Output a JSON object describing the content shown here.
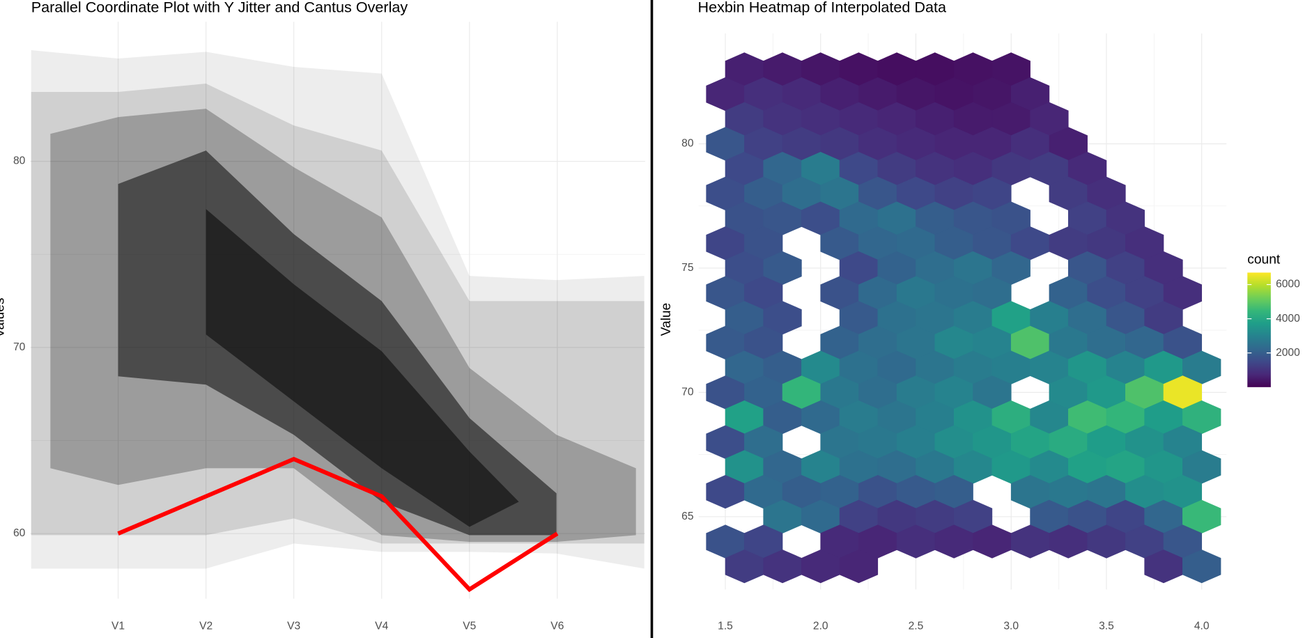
{
  "chart_data": [
    {
      "type": "line",
      "title": "Parallel Coordinate Plot with Y Jitter and Cantus Overlay",
      "y_label": "Values",
      "categories": [
        "V1",
        "V2",
        "V3",
        "V4",
        "V5",
        "V6"
      ],
      "values": [
        60,
        62,
        64,
        62,
        57,
        60
      ],
      "color": "#ff0000",
      "ylim": [
        56.5,
        87.5
      ],
      "yticks": [
        60,
        70,
        80
      ],
      "grid": true
    },
    {
      "type": "hexbin",
      "title": "Hexbin Heatmap of Interpolated Data",
      "y_label": "Value",
      "xlim": [
        1.36,
        4.13
      ],
      "ylim": [
        62.07,
        84.44
      ],
      "xticks": [
        1.5,
        {
          "value": 2,
          "label": "2.0"
        },
        2.5,
        {
          "value": 3,
          "label": "3.0"
        },
        3.5,
        {
          "value": 4,
          "label": "4.0"
        }
      ],
      "yticks": [
        65,
        70,
        75,
        80
      ],
      "grid": true,
      "legend_title": "count",
      "legend_ticks": [
        2000,
        4000,
        6000
      ],
      "legend_lim": [
        0,
        6700
      ],
      "colorscale": [
        "#440154",
        "#482878",
        "#3e4989",
        "#31688e",
        "#26828e",
        "#1f9e89",
        "#35b779",
        "#6ece58",
        "#b5de2b",
        "#fde725"
      ],
      "rows": [
        {
          "y": 83,
          "x": [
            1.6,
            1.8,
            2.0,
            2.2,
            2.4,
            2.6,
            2.8,
            3.0
          ],
          "values": [
            600,
            500,
            400,
            300,
            250,
            250,
            300,
            350
          ]
        },
        {
          "y": 82,
          "x": [
            1.5,
            1.7,
            1.9,
            2.1,
            2.3,
            2.5,
            2.7,
            2.9,
            3.1
          ],
          "values": [
            700,
            900,
            800,
            600,
            500,
            400,
            350,
            400,
            600
          ]
        },
        {
          "y": 81,
          "x": [
            1.6,
            1.8,
            2.0,
            2.2,
            2.4,
            2.6,
            2.8,
            3.0,
            3.2
          ],
          "values": [
            1200,
            1000,
            900,
            800,
            700,
            600,
            500,
            500,
            700
          ]
        },
        {
          "y": 80,
          "x": [
            1.5,
            1.7,
            1.9,
            2.1,
            2.3,
            2.5,
            2.7,
            2.9,
            3.1,
            3.3
          ],
          "values": [
            1800,
            1300,
            1200,
            1100,
            900,
            800,
            700,
            700,
            900,
            600
          ]
        },
        {
          "y": 79,
          "x": [
            1.6,
            1.8,
            2.0,
            2.2,
            2.4,
            2.6,
            2.8,
            3.0,
            3.2,
            3.4
          ],
          "values": [
            1500,
            2200,
            2800,
            1500,
            1200,
            1000,
            900,
            1100,
            1200,
            800
          ]
        },
        {
          "y": 78,
          "x": [
            1.5,
            1.7,
            1.9,
            2.1,
            2.3,
            2.5,
            2.7,
            2.9,
            3.1,
            3.3,
            3.5
          ],
          "values": [
            1600,
            2000,
            2400,
            2600,
            1800,
            1500,
            1300,
            1400,
            null,
            1200,
            900
          ]
        },
        {
          "y": 77,
          "x": [
            1.6,
            1.8,
            2.0,
            2.2,
            2.4,
            2.6,
            2.8,
            3.0,
            3.2,
            3.4,
            3.6
          ],
          "values": [
            1700,
            1800,
            1600,
            2300,
            2500,
            2000,
            1800,
            1700,
            null,
            1300,
            1000
          ]
        },
        {
          "y": 76,
          "x": [
            1.5,
            1.7,
            1.9,
            2.1,
            2.3,
            2.5,
            2.7,
            2.9,
            3.1,
            3.3,
            3.5,
            3.7
          ],
          "values": [
            1400,
            1700,
            null,
            1900,
            2200,
            2300,
            2000,
            1800,
            1500,
            1200,
            1100,
            900
          ]
        },
        {
          "y": 75,
          "x": [
            1.6,
            1.8,
            2.0,
            2.2,
            2.4,
            2.6,
            2.8,
            3.0,
            3.2,
            3.4,
            3.6,
            3.8
          ],
          "values": [
            1600,
            1900,
            null,
            1500,
            2100,
            2400,
            2600,
            2200,
            null,
            1800,
            1300,
            900
          ]
        },
        {
          "y": 74,
          "x": [
            1.5,
            1.7,
            1.9,
            2.1,
            2.3,
            2.5,
            2.7,
            2.9,
            3.1,
            3.3,
            3.5,
            3.7,
            3.9
          ],
          "values": [
            1800,
            1500,
            null,
            1700,
            2300,
            2700,
            2500,
            2400,
            null,
            2100,
            1600,
            1300,
            900
          ]
        },
        {
          "y": 73,
          "x": [
            1.6,
            1.8,
            2.0,
            2.2,
            2.4,
            2.6,
            2.8,
            3.0,
            3.2,
            3.4,
            3.6,
            3.8
          ],
          "values": [
            2000,
            1600,
            null,
            1900,
            2500,
            2600,
            2800,
            3800,
            2900,
            2400,
            1800,
            1200
          ]
        },
        {
          "y": 72,
          "x": [
            1.5,
            1.7,
            1.9,
            2.1,
            2.3,
            2.5,
            2.7,
            2.9,
            3.1,
            3.3,
            3.5,
            3.7,
            3.9
          ],
          "values": [
            1900,
            1700,
            null,
            2100,
            2400,
            2600,
            3100,
            3000,
            4800,
            2700,
            2400,
            2200,
            1700
          ]
        },
        {
          "y": 71,
          "x": [
            1.6,
            1.8,
            2.0,
            2.2,
            2.4,
            2.6,
            2.8,
            3.0,
            3.2,
            3.4,
            3.6,
            3.8,
            4.0
          ],
          "values": [
            2200,
            2000,
            3200,
            2500,
            2300,
            2600,
            2800,
            2900,
            3000,
            3500,
            3000,
            3600,
            2800
          ]
        },
        {
          "y": 70,
          "x": [
            1.5,
            1.7,
            1.9,
            2.1,
            2.3,
            2.5,
            2.7,
            2.9,
            3.1,
            3.3,
            3.5,
            3.7,
            3.9
          ],
          "values": [
            1700,
            2100,
            4400,
            2700,
            2400,
            2800,
            3000,
            2600,
            null,
            3200,
            3600,
            4800,
            6500
          ]
        },
        {
          "y": 69,
          "x": [
            1.6,
            1.8,
            2.0,
            2.2,
            2.4,
            2.6,
            2.8,
            3.0,
            3.2,
            3.4,
            3.6,
            3.8,
            4.0
          ],
          "values": [
            3800,
            2000,
            2300,
            2800,
            2600,
            2900,
            3400,
            4200,
            3100,
            4600,
            4400,
            3700,
            4300
          ]
        },
        {
          "y": 68,
          "x": [
            1.5,
            1.7,
            1.9,
            2.1,
            2.3,
            2.5,
            2.7,
            2.9,
            3.1,
            3.3,
            3.5,
            3.7,
            3.9
          ],
          "values": [
            1600,
            2400,
            null,
            2600,
            2700,
            2900,
            3300,
            3500,
            3900,
            4100,
            3700,
            3400,
            3000
          ]
        },
        {
          "y": 67,
          "x": [
            1.6,
            1.8,
            2.0,
            2.2,
            2.4,
            2.6,
            2.8,
            3.0,
            3.2,
            3.4,
            3.6,
            3.8,
            4.0
          ],
          "values": [
            3400,
            2200,
            3000,
            2500,
            2400,
            2700,
            3100,
            3600,
            3200,
            3800,
            3900,
            3500,
            2800
          ]
        },
        {
          "y": 66,
          "x": [
            1.5,
            1.7,
            1.9,
            2.1,
            2.3,
            2.5,
            2.7,
            2.9,
            3.1,
            3.3,
            3.5,
            3.7,
            3.9
          ],
          "values": [
            1500,
            2300,
            2000,
            2100,
            1700,
            1900,
            2000,
            null,
            2600,
            2700,
            2600,
            3300,
            3400
          ]
        },
        {
          "y": 65,
          "x": [
            1.6,
            1.8,
            2.0,
            2.2,
            2.4,
            2.6,
            2.8,
            3.0,
            3.2,
            3.4,
            3.6,
            3.8,
            4.0
          ],
          "values": [
            null,
            2600,
            2300,
            1300,
            1100,
            1200,
            1300,
            null,
            1900,
            1700,
            1400,
            2200,
            4500
          ]
        },
        {
          "y": 64,
          "x": [
            1.5,
            1.7,
            1.9,
            2.1,
            2.3,
            2.5,
            2.7,
            2.9,
            3.1,
            3.3,
            3.5,
            3.7,
            3.9
          ],
          "values": [
            1700,
            1400,
            null,
            800,
            700,
            900,
            800,
            700,
            1000,
            900,
            1100,
            1300,
            1800
          ]
        },
        {
          "y": 63,
          "x": [
            1.6,
            1.8,
            2.0,
            2.2,
            2.4,
            2.6,
            2.8,
            3.0,
            3.2,
            3.4,
            3.6,
            3.8,
            4.0
          ],
          "values": [
            1200,
            1000,
            800,
            700,
            null,
            null,
            null,
            null,
            null,
            null,
            null,
            1000,
            2000
          ]
        }
      ]
    }
  ]
}
